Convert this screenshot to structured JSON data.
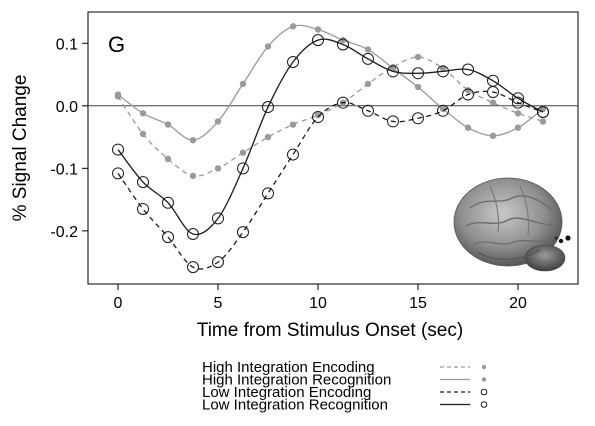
{
  "chart_data": {
    "type": "line",
    "panel_letter": "G",
    "title": "",
    "xlabel": "Time from Stimulus Onset (sec)",
    "ylabel": "% Signal Change",
    "xlim": [
      -1.5,
      23
    ],
    "ylim": [
      -0.285,
      0.15
    ],
    "xticks": [
      0,
      5,
      10,
      15,
      20
    ],
    "yticks": [
      -0.2,
      -0.1,
      0.0,
      0.1
    ],
    "ytick_labels": [
      "-0.2",
      "-0.1",
      "0.0",
      "0.1"
    ],
    "xtick_labels": [
      "0",
      "5",
      "10",
      "15",
      "20"
    ],
    "zero_line": true,
    "grid": false,
    "legend_position": "bottom-center",
    "series": [
      {
        "name": "High Integration Encoding",
        "color": "#9a9a9a",
        "line_style": "dashed",
        "marker": "dot",
        "x": [
          0,
          1.25,
          2.5,
          3.75,
          5,
          6.25,
          7.5,
          8.75,
          10,
          11.25,
          12.5,
          13.75,
          15,
          16.25,
          17.5,
          18.75,
          20,
          21.25
        ],
        "y": [
          0.015,
          -0.045,
          -0.085,
          -0.112,
          -0.1,
          -0.075,
          -0.05,
          -0.03,
          -0.015,
          0.005,
          0.035,
          0.062,
          0.078,
          0.06,
          0.025,
          0.005,
          -0.012,
          -0.025
        ]
      },
      {
        "name": "High Integration Recognition",
        "color": "#9a9a9a",
        "line_style": "solid",
        "marker": "dot",
        "x": [
          0,
          1.25,
          2.5,
          3.75,
          5,
          6.25,
          7.5,
          8.75,
          10,
          11.25,
          12.5,
          13.75,
          15,
          16.25,
          17.5,
          18.75,
          20,
          21.25
        ],
        "y": [
          0.018,
          -0.012,
          -0.03,
          -0.055,
          -0.025,
          0.035,
          0.095,
          0.127,
          0.122,
          0.105,
          0.09,
          0.06,
          0.03,
          -0.005,
          -0.035,
          -0.048,
          -0.035,
          -0.005
        ]
      },
      {
        "name": "Low Integration Encoding",
        "color": "#1a1a1a",
        "line_style": "dashed",
        "marker": "open-circle",
        "x": [
          0,
          1.25,
          2.5,
          3.75,
          5,
          6.25,
          7.5,
          8.75,
          10,
          11.25,
          12.5,
          13.75,
          15,
          16.25,
          17.5,
          18.75,
          20,
          21.25
        ],
        "y": [
          -0.108,
          -0.165,
          -0.21,
          -0.258,
          -0.25,
          -0.202,
          -0.14,
          -0.078,
          -0.018,
          0.005,
          -0.008,
          -0.025,
          -0.02,
          -0.008,
          0.018,
          0.022,
          0.005,
          -0.01
        ]
      },
      {
        "name": "Low Integration Recognition",
        "color": "#1a1a1a",
        "line_style": "solid",
        "marker": "open-circle",
        "x": [
          0,
          1.25,
          2.5,
          3.75,
          5,
          6.25,
          7.5,
          8.75,
          10,
          11.25,
          12.5,
          13.75,
          15,
          16.25,
          17.5,
          18.75,
          20,
          21.25
        ],
        "y": [
          -0.07,
          -0.122,
          -0.155,
          -0.205,
          -0.18,
          -0.1,
          -0.002,
          0.07,
          0.105,
          0.098,
          0.075,
          0.055,
          0.052,
          0.055,
          0.058,
          0.04,
          0.012,
          -0.01
        ]
      }
    ]
  }
}
